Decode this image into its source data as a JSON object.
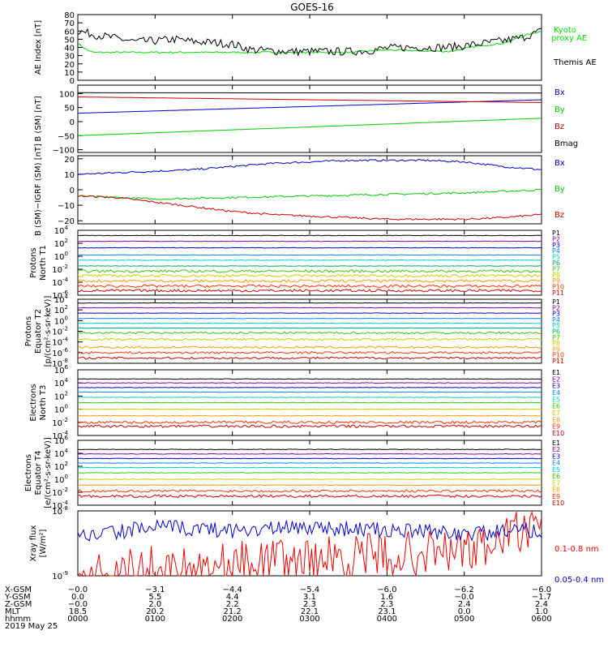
{
  "title": "GOES-16",
  "chart_data": [
    {
      "type": "line",
      "panel": "ae",
      "ylabel": "AE Index [nT]",
      "ylim": [
        0,
        80
      ],
      "yticks": [
        0,
        10,
        20,
        30,
        40,
        50,
        60,
        70,
        80
      ],
      "yticklabels": [
        "0",
        "10",
        "20",
        "30",
        "40",
        "50",
        "60",
        "70",
        "80"
      ],
      "series": [
        {
          "name": "Kyoto proxy AE",
          "color": "#00dd00",
          "labelLines": [
            "Kyoto",
            "proxy AE"
          ],
          "x": [
            0,
            0.1,
            0.2,
            0.5,
            1.5,
            2.5,
            3.0,
            3.5,
            4.0,
            4.8,
            5.2,
            5.5,
            5.8,
            6.0
          ],
          "y": [
            45,
            38,
            34,
            34,
            34,
            34,
            34,
            34,
            37,
            35,
            42,
            45,
            55,
            60
          ]
        },
        {
          "name": "Themis AE",
          "color": "#000000",
          "labelLines": [
            "Themis AE"
          ],
          "x": [
            0,
            0.25,
            0.5,
            0.75,
            1.0,
            1.25,
            1.5,
            1.75,
            2.0,
            2.25,
            2.5,
            2.75,
            3.0,
            3.25,
            3.5,
            3.75,
            4.0,
            4.25,
            4.5,
            4.75,
            5.0,
            5.25,
            5.5,
            5.75,
            6.0
          ],
          "y": [
            60,
            55,
            51,
            47,
            48,
            50,
            47,
            46,
            44,
            37,
            36,
            35,
            35,
            35,
            35,
            36,
            39,
            40,
            40,
            40,
            42,
            45,
            48,
            52,
            60
          ]
        }
      ]
    },
    {
      "type": "line",
      "panel": "bsm",
      "ylabel": "B (SM) [nT]",
      "ylim": [
        -110,
        130
      ],
      "yticks": [
        -100,
        -50,
        0,
        50,
        100
      ],
      "yticklabels": [
        "−100",
        "−50",
        "0",
        "50",
        "100"
      ],
      "series": [
        {
          "name": "Bx",
          "color": "#0000cc",
          "x": [
            0,
            6
          ],
          "y": [
            30,
            78
          ]
        },
        {
          "name": "By",
          "color": "#00cc00",
          "x": [
            0,
            6
          ],
          "y": [
            -50,
            12
          ]
        },
        {
          "name": "Bz",
          "color": "#cc0000",
          "x": [
            0,
            6
          ],
          "y": [
            88,
            68
          ]
        },
        {
          "name": "Bmag",
          "color": "#000000",
          "x": [
            0,
            6
          ],
          "y": [
            103,
            102
          ]
        }
      ]
    },
    {
      "type": "line",
      "panel": "bigrf",
      "ylabel": "B (SM)−IGRF (SM) [nT]",
      "ylim": [
        -22,
        22
      ],
      "yticks": [
        -20,
        -10,
        0,
        10,
        20
      ],
      "yticklabels": [
        "−20",
        "−10",
        "0",
        "10",
        "20"
      ],
      "series": [
        {
          "name": "Bx",
          "color": "#0000cc",
          "x": [
            0,
            0.5,
            1,
            1.5,
            2,
            2.5,
            3,
            3.5,
            4,
            4.5,
            5,
            5.5,
            6
          ],
          "y": [
            10,
            11,
            12,
            13,
            15,
            17,
            18,
            19,
            19,
            19,
            18,
            15,
            13
          ]
        },
        {
          "name": "By",
          "color": "#00cc00",
          "x": [
            0,
            1,
            2,
            3,
            4,
            5,
            6
          ],
          "y": [
            -4,
            -6,
            -5,
            -4,
            -3,
            -2,
            0
          ]
        },
        {
          "name": "Bz",
          "color": "#cc0000",
          "x": [
            0,
            0.5,
            1,
            1.5,
            2,
            2.5,
            3,
            3.5,
            4,
            4.5,
            5,
            5.5,
            6
          ],
          "y": [
            -4,
            -5,
            -8,
            -11,
            -14,
            -16,
            -17,
            -18,
            -19,
            -19,
            -19,
            -18,
            -16
          ]
        }
      ]
    },
    {
      "type": "line",
      "panel": "protons-north",
      "scale": "log",
      "ylabel_lines": [
        "Protons",
        "North T1"
      ],
      "ylim_exp": [
        -6,
        4
      ],
      "ytick_exps": [
        -6,
        -4,
        -2,
        0,
        2,
        4
      ],
      "series": [
        {
          "name": "P1",
          "color": "#000000",
          "level": 3.2
        },
        {
          "name": "P2",
          "color": "#8800aa",
          "level": 2.3
        },
        {
          "name": "P3",
          "color": "#0000cc",
          "level": 1.3
        },
        {
          "name": "P4",
          "color": "#0088ff",
          "level": 0.2
        },
        {
          "name": "P5",
          "color": "#00cccc",
          "level": -0.6
        },
        {
          "name": "P6",
          "color": "#00aa66",
          "level": -1.5
        },
        {
          "name": "P7",
          "color": "#33cc00",
          "level": -2.3
        },
        {
          "name": "P8",
          "color": "#cccc00",
          "level": -3.0
        },
        {
          "name": "P9",
          "color": "#ff9900",
          "level": -3.8
        },
        {
          "name": "P10",
          "color": "#ff3300",
          "level": -4.6
        },
        {
          "name": "P11",
          "color": "#cc0000",
          "level": -5.3
        }
      ]
    },
    {
      "type": "line",
      "panel": "protons-equator",
      "scale": "log",
      "ylabel_lines": [
        "Protons",
        "Equator T2",
        "[p/(cm²-s-sr-keV)]"
      ],
      "ylim_exp": [
        -8,
        4
      ],
      "ytick_exps": [
        -8,
        -6,
        -4,
        -2,
        0,
        2,
        4
      ],
      "series": [
        {
          "name": "P1",
          "color": "#000000",
          "level": 3.3
        },
        {
          "name": "P2",
          "color": "#8800aa",
          "level": 2.4
        },
        {
          "name": "P3",
          "color": "#0000cc",
          "level": 1.4
        },
        {
          "name": "P4",
          "color": "#0088ff",
          "level": 0.4
        },
        {
          "name": "P5",
          "color": "#00cccc",
          "level": -0.5
        },
        {
          "name": "P6",
          "color": "#00aa66",
          "level": -1.4
        },
        {
          "name": "P7",
          "color": "#33cc00",
          "level": -2.3
        },
        {
          "name": "P8",
          "color": "#cccc00",
          "level": -3.5
        },
        {
          "name": "P9",
          "color": "#ff9900",
          "level": -5.0
        },
        {
          "name": "P10",
          "color": "#ff3300",
          "level": -6.0
        },
        {
          "name": "P11",
          "color": "#cc0000",
          "level": -7.0
        }
      ]
    },
    {
      "type": "line",
      "panel": "electrons-north",
      "scale": "log",
      "ylabel_lines": [
        "Electrons",
        "North T3"
      ],
      "ylim_exp": [
        -4,
        6
      ],
      "ytick_exps": [
        -4,
        -2,
        0,
        2,
        4,
        6
      ],
      "series": [
        {
          "name": "E1",
          "color": "#000000",
          "level": 4.6
        },
        {
          "name": "E2",
          "color": "#8800aa",
          "level": 4.0
        },
        {
          "name": "E3",
          "color": "#0000cc",
          "level": 3.3
        },
        {
          "name": "E4",
          "color": "#0088ff",
          "level": 2.6
        },
        {
          "name": "E5",
          "color": "#00cccc",
          "level": 1.8
        },
        {
          "name": "E6",
          "color": "#33cc00",
          "level": 1.0
        },
        {
          "name": "E7",
          "color": "#cccc00",
          "level": 0.0
        },
        {
          "name": "E8",
          "color": "#ff9900",
          "level": -1.0
        },
        {
          "name": "E9",
          "color": "#ff3300",
          "level": -2.0
        },
        {
          "name": "E10",
          "color": "#cc0000",
          "level": -2.6
        }
      ]
    },
    {
      "type": "line",
      "panel": "electrons-equator",
      "scale": "log",
      "ylabel_lines": [
        "Electrons",
        "Equator T4",
        "[e/(cm²-s-sr-keV)]"
      ],
      "ylim_exp": [
        -4,
        6
      ],
      "ytick_exps": [
        -4,
        -2,
        0,
        2,
        4,
        6
      ],
      "series": [
        {
          "name": "E1",
          "color": "#000000",
          "level": 4.6
        },
        {
          "name": "E2",
          "color": "#8800aa",
          "level": 3.9
        },
        {
          "name": "E3",
          "color": "#0000cc",
          "level": 3.2
        },
        {
          "name": "E4",
          "color": "#0088ff",
          "level": 2.5
        },
        {
          "name": "E5",
          "color": "#00cccc",
          "level": 1.8
        },
        {
          "name": "E6",
          "color": "#33cc00",
          "level": 1.0
        },
        {
          "name": "E7",
          "color": "#cccc00",
          "level": 0.0
        },
        {
          "name": "E8",
          "color": "#ff9900",
          "level": -0.9
        },
        {
          "name": "E9",
          "color": "#ff3300",
          "level": -1.8
        },
        {
          "name": "E10",
          "color": "#cc0000",
          "level": -2.6
        }
      ]
    },
    {
      "type": "line",
      "panel": "xray",
      "scale": "log",
      "ylabel_lines": [
        "Xray flux",
        "[W/m²]"
      ],
      "ylim_exp": [
        -9,
        -8
      ],
      "ytick_exps": [
        -9,
        -8
      ],
      "series": [
        {
          "name": "0.1-0.8 nm",
          "color": "#ee0000",
          "x": [
            0,
            5.2,
            5.4,
            5.6,
            5.8,
            6.0
          ],
          "y": [
            -8.95,
            -8.6,
            -8.5,
            -8.35,
            -8.3,
            -8.4
          ]
        },
        {
          "name": "0.05-0.4 nm",
          "color": "#0000cc",
          "x": [
            0,
            1,
            2,
            3,
            4,
            5,
            6
          ],
          "y": [
            -8.4,
            -8.25,
            -8.3,
            -8.25,
            -8.3,
            -8.35,
            -8.3
          ]
        }
      ]
    }
  ],
  "x_axis": {
    "xlim": [
      0,
      6
    ],
    "rows": [
      {
        "label": "X-GSM",
        "values": [
          "−0.0",
          "−3.1",
          "−4.4",
          "−5.4",
          "−6.0",
          "−6.2",
          "−6.0"
        ]
      },
      {
        "label": "Y-GSM",
        "values": [
          "0.0",
          "5.5",
          "4.4",
          "3.1",
          "1.6",
          "−0.0",
          "−1.7"
        ]
      },
      {
        "label": "Z-GSM",
        "values": [
          "−0.0",
          "2.0",
          "2.2",
          "2.3",
          "2.3",
          "2.4",
          "2.4"
        ]
      },
      {
        "label": "MLT",
        "values": [
          "18.5",
          "20.2",
          "21.2",
          "22.1",
          "23.1",
          "0.0",
          "1.0"
        ]
      },
      {
        "label": "hhmm",
        "values": [
          "0000",
          "0100",
          "0200",
          "0300",
          "0400",
          "0500",
          "0600"
        ]
      }
    ],
    "date": "2019 May 25"
  },
  "colors": {
    "frame": "#000000",
    "background": "#ffffff"
  }
}
